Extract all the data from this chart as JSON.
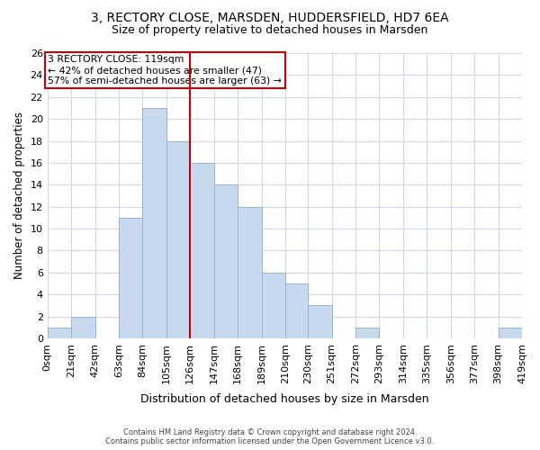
{
  "title1": "3, RECTORY CLOSE, MARSDEN, HUDDERSFIELD, HD7 6EA",
  "title2": "Size of property relative to detached houses in Marsden",
  "xlabel": "Distribution of detached houses by size in Marsden",
  "ylabel": "Number of detached properties",
  "bar_edges": [
    0,
    21,
    42,
    63,
    84,
    105,
    126,
    147,
    168,
    189,
    210,
    230,
    251,
    272,
    293,
    314,
    335,
    356,
    377,
    398,
    419
  ],
  "bar_heights": [
    1,
    2,
    0,
    11,
    21,
    18,
    16,
    14,
    12,
    6,
    5,
    3,
    0,
    1,
    0,
    0,
    0,
    0,
    0,
    1
  ],
  "bar_color": "#c8d8ee",
  "bar_edgecolor": "#9ab4cc",
  "vline_x": 126,
  "vline_color": "#cc0000",
  "annotation_title": "3 RECTORY CLOSE: 119sqm",
  "annotation_line1": "← 42% of detached houses are smaller (47)",
  "annotation_line2": "57% of semi-detached houses are larger (63) →",
  "annotation_box_facecolor": "#ffffff",
  "annotation_box_edgecolor": "#cc0000",
  "xtick_labels": [
    "0sqm",
    "21sqm",
    "42sqm",
    "63sqm",
    "84sqm",
    "105sqm",
    "126sqm",
    "147sqm",
    "168sqm",
    "189sqm",
    "210sqm",
    "230sqm",
    "251sqm",
    "272sqm",
    "293sqm",
    "314sqm",
    "335sqm",
    "356sqm",
    "377sqm",
    "398sqm",
    "419sqm"
  ],
  "ylim": [
    0,
    26
  ],
  "yticks": [
    0,
    2,
    4,
    6,
    8,
    10,
    12,
    14,
    16,
    18,
    20,
    22,
    24,
    26
  ],
  "footer1": "Contains HM Land Registry data © Crown copyright and database right 2024.",
  "footer2": "Contains public sector information licensed under the Open Government Licence v3.0.",
  "bg_color": "#ffffff",
  "grid_color": "#d0d8e8"
}
